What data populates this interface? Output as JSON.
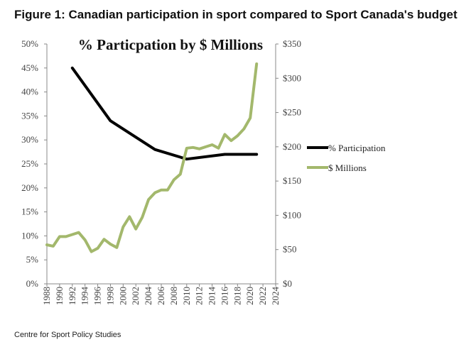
{
  "figure_title": "Figure 1: Canadian participation in sport compared to Sport Canada's budget",
  "source": "Centre for Sport Policy Studies",
  "colors": {
    "participation": "#000000",
    "millions": "#a3b86c",
    "axis": "#888888"
  },
  "chart_data": {
    "type": "line",
    "title": "% Particpation by $ Millions",
    "x_ticks": [
      "1988",
      "1990",
      "1992",
      "1994",
      "1996",
      "1998",
      "2000",
      "2002",
      "2004",
      "2006",
      "2008",
      "2010",
      "2012",
      "2014",
      "2016",
      "2018",
      "2020",
      "2022",
      "2024"
    ],
    "xlim": [
      1988,
      2024
    ],
    "y_left": {
      "ticks": [
        "0%",
        "5%",
        "10%",
        "15%",
        "20%",
        "25%",
        "30%",
        "35%",
        "40%",
        "45%",
        "50%"
      ],
      "lim": [
        0,
        50
      ]
    },
    "y_right": {
      "ticks": [
        "$0",
        "$50",
        "$100",
        "$150",
        "$200",
        "$250",
        "$300",
        "$350"
      ],
      "lim": [
        0,
        350
      ]
    },
    "legend_position": "right",
    "series": [
      {
        "name": "% Participation",
        "axis": "left",
        "x": [
          1992,
          1998,
          2005,
          2010,
          2016,
          2021
        ],
        "values": [
          45,
          34,
          28,
          26,
          27,
          27
        ]
      },
      {
        "name": "$ Millions",
        "axis": "right",
        "x": [
          1988,
          1989,
          1990,
          1991,
          1992,
          1993,
          1994,
          1995,
          1996,
          1997,
          1998,
          1999,
          2000,
          2001,
          2002,
          2003,
          2004,
          2005,
          2006,
          2007,
          2008,
          2009,
          2010,
          2011,
          2012,
          2013,
          2014,
          2015,
          2016,
          2017,
          2018,
          2019,
          2020,
          2021
        ],
        "values": [
          57,
          55,
          69,
          69,
          72,
          75,
          64,
          47,
          52,
          65,
          58,
          53,
          83,
          98,
          80,
          97,
          123,
          133,
          137,
          137,
          152,
          160,
          198,
          199,
          197,
          200,
          203,
          198,
          218,
          209,
          216,
          226,
          242,
          321
        ]
      }
    ]
  }
}
